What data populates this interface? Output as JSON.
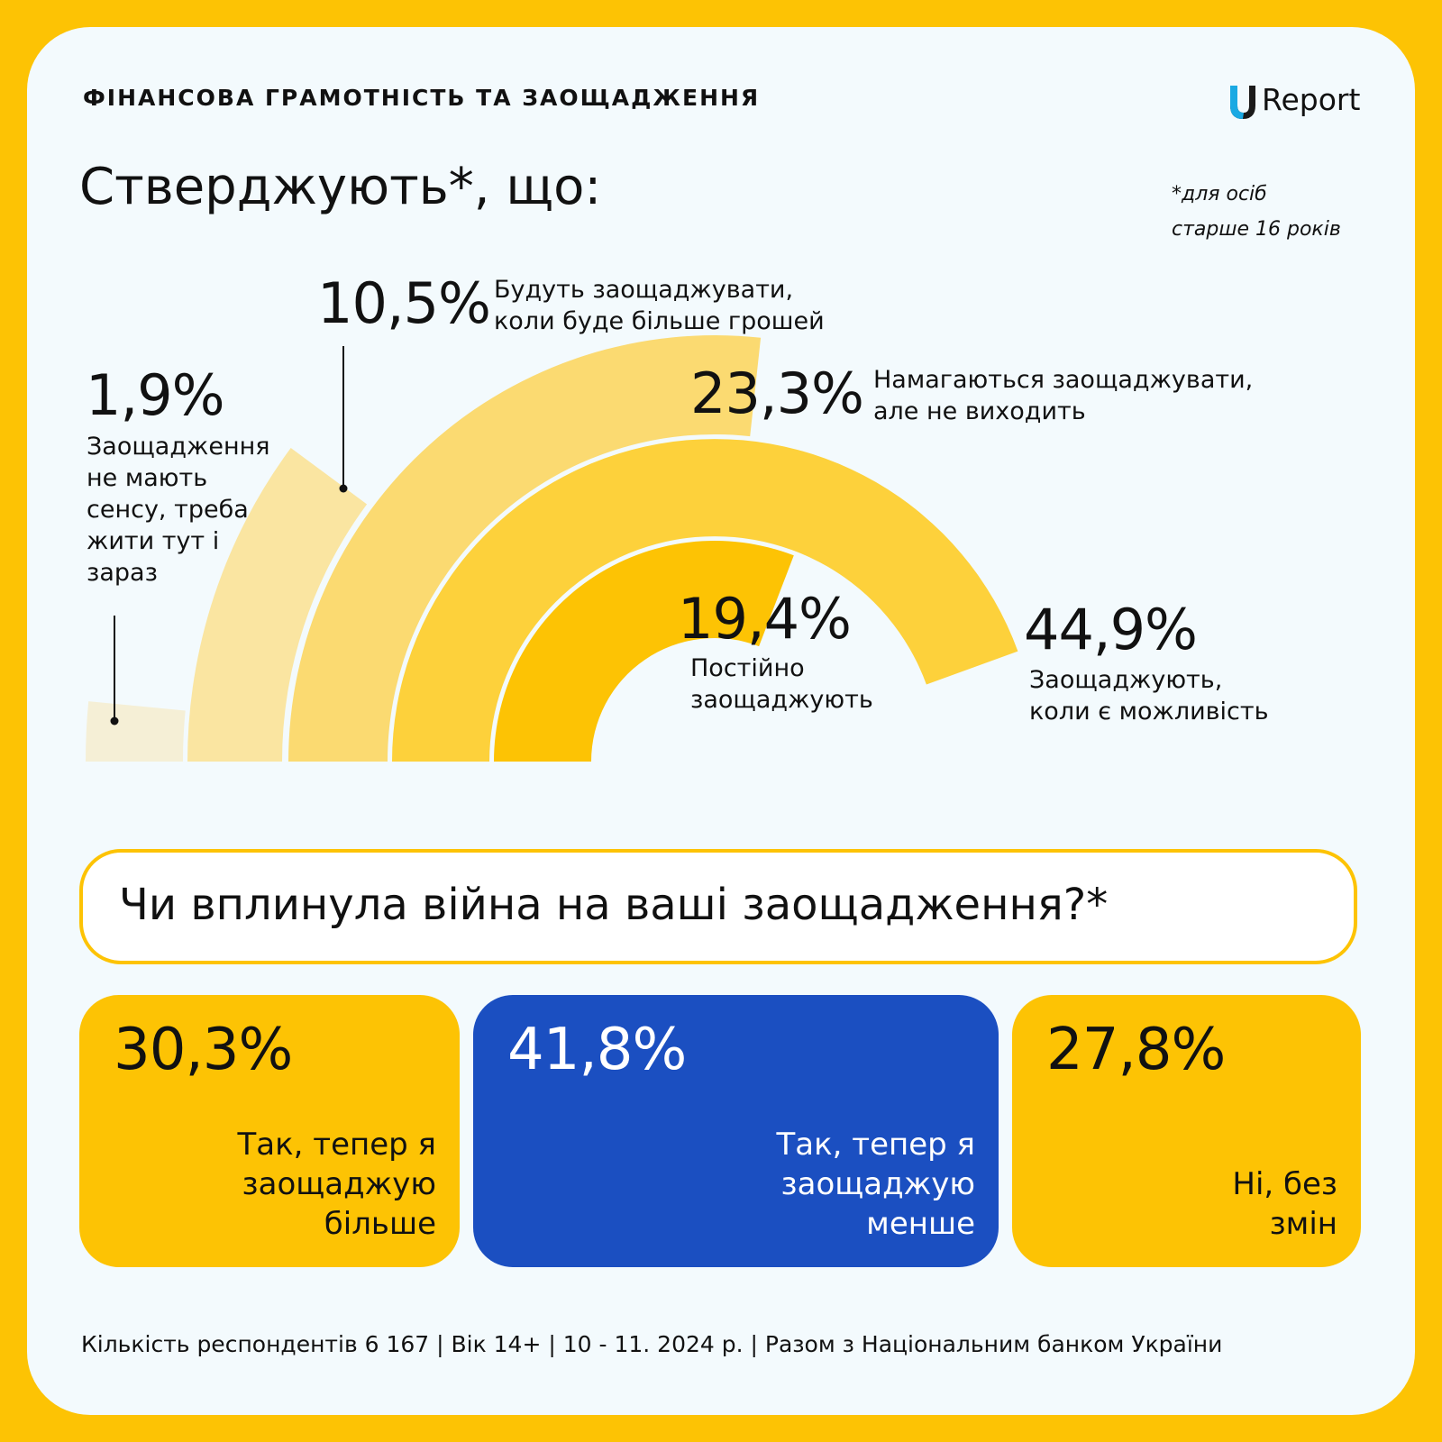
{
  "header": {
    "title": "ФІНАНСОВА ГРАМОТНІСТЬ ТА ЗАОЩАДЖЕННЯ",
    "logo_text": "Report",
    "logo_letter": "U"
  },
  "main_title": "Стверджують*, що:",
  "footnote": {
    "line1": "*для осіб",
    "line2": "старше 16 років"
  },
  "chart_data": {
    "type": "arc",
    "title": "Стверджують*, що:",
    "items": [
      {
        "value_label": "1,9%",
        "value": 1.9,
        "label_lines": [
          "Заощадження",
          "не мають",
          "сенсу, треба",
          "жити тут і",
          "зараз"
        ],
        "color": "#F5EFD6"
      },
      {
        "value_label": "10,5%",
        "value": 10.5,
        "label_lines": [
          "Будуть заощаджувати,",
          "коли буде більше грошей"
        ],
        "color": "#FAE5A1"
      },
      {
        "value_label": "23,3%",
        "value": 23.3,
        "label_lines": [
          "Намагаються заощаджувати,",
          "але не виходить"
        ],
        "color": "#FBDA71"
      },
      {
        "value_label": "44,9%",
        "value": 44.9,
        "label_lines": [
          "Заощаджують,",
          "коли є можливість"
        ],
        "color": "#FDD13B"
      },
      {
        "value_label": "19,4%",
        "value": 19.4,
        "label_lines": [
          "Постійно",
          "заощаджують"
        ],
        "color": "#FDC304"
      }
    ]
  },
  "question": "Чи вплинула війна на ваші заощадження?*",
  "answers": [
    {
      "pct": "30,3%",
      "label_lines": [
        "Так, тепер я",
        "заощаджую",
        "більше"
      ],
      "bg": "#FDC304",
      "fg": "#111111"
    },
    {
      "pct": "41,8%",
      "label_lines": [
        "Так, тепер я",
        "заощаджую",
        "менше"
      ],
      "bg": "#1B4FC1",
      "fg": "#FFFFFF"
    },
    {
      "pct": "27,8%",
      "label_lines": [
        "Ні, без",
        "змін"
      ],
      "bg": "#FDC304",
      "fg": "#111111"
    }
  ],
  "footer": "Кількість респондентів 6 167 | Вік 14+ | 10 - 11. 2024 р. | Разом з Національним банком України"
}
